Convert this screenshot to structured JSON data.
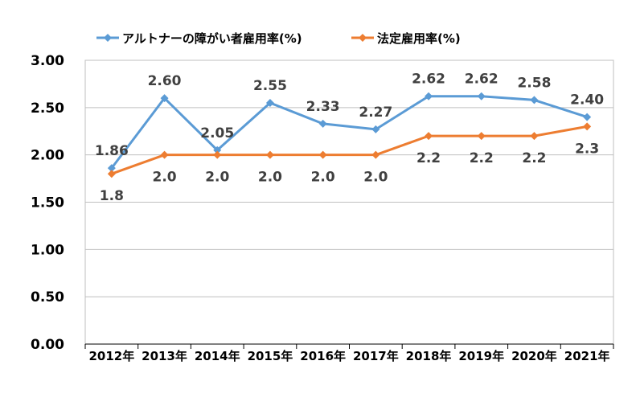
{
  "chart_data": {
    "type": "line",
    "title": "",
    "xlabel": "",
    "ylabel": "",
    "categories": [
      "2012年",
      "2013年",
      "2014年",
      "2015年",
      "2016年",
      "2017年",
      "2018年",
      "2019年",
      "2020年",
      "2021年"
    ],
    "ylim": [
      0,
      3
    ],
    "yticks": [
      "0.00",
      "0.50",
      "1.00",
      "1.50",
      "2.00",
      "2.50",
      "3.00"
    ],
    "grid": true,
    "legend_position": "top",
    "series": [
      {
        "name": "アルトナーの障がい者雇用率(%)",
        "color": "#5B9BD5",
        "values": [
          1.86,
          2.6,
          2.05,
          2.55,
          2.33,
          2.27,
          2.62,
          2.62,
          2.58,
          2.4
        ],
        "labels": [
          "1.86",
          "2.60",
          "2.05",
          "2.55",
          "2.33",
          "2.27",
          "2.62",
          "2.62",
          "2.58",
          "2.40"
        ]
      },
      {
        "name": "法定雇用率(%)",
        "color": "#ED7D31",
        "values": [
          1.8,
          2.0,
          2.0,
          2.0,
          2.0,
          2.0,
          2.2,
          2.2,
          2.2,
          2.3
        ],
        "labels": [
          "1.8",
          "2.0",
          "2.0",
          "2.0",
          "2.0",
          "2.0",
          "2.2",
          "2.2",
          "2.2",
          "2.3"
        ]
      }
    ]
  }
}
